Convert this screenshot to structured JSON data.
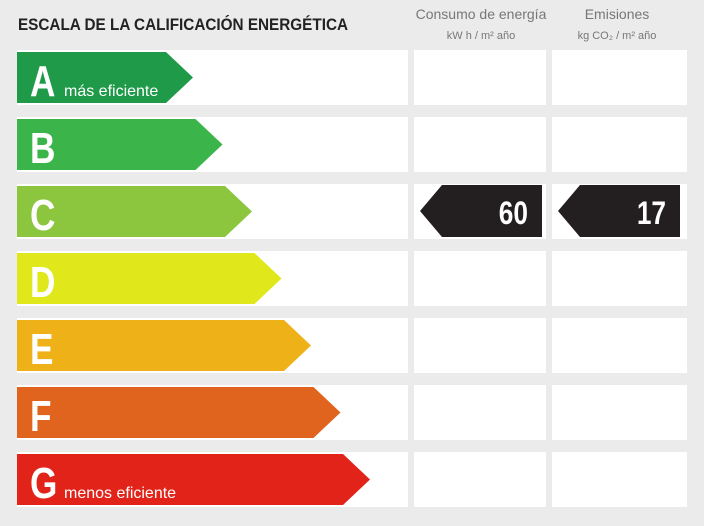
{
  "header": {
    "title": "ESCALA DE LA CALIFICACIÓN ENERGÉTICA"
  },
  "columns": [
    {
      "title": "Consumo de energía",
      "unit": "kW h / m² año"
    },
    {
      "title": "Emisiones",
      "unit": "kg CO₂ / m² año"
    }
  ],
  "rows": [
    {
      "letter": "A",
      "color": "#1e9a48",
      "note": "más eficiente"
    },
    {
      "letter": "B",
      "color": "#3bb449"
    },
    {
      "letter": "C",
      "color": "#8cc63f",
      "consumption": 60,
      "emissions": 17
    },
    {
      "letter": "D",
      "color": "#e0e81c"
    },
    {
      "letter": "E",
      "color": "#eeb117"
    },
    {
      "letter": "F",
      "color": "#e0641e"
    },
    {
      "letter": "G",
      "color": "#e2231a",
      "note": "menos eficiente"
    }
  ]
}
